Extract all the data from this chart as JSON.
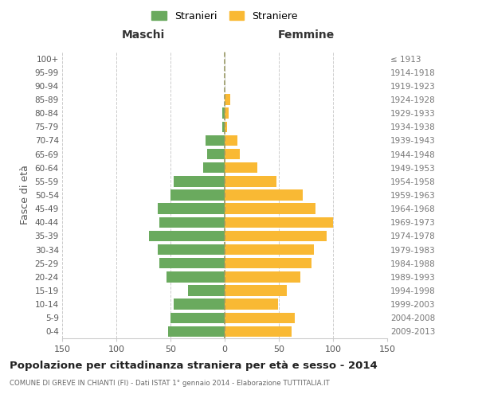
{
  "age_groups": [
    "0-4",
    "5-9",
    "10-14",
    "15-19",
    "20-24",
    "25-29",
    "30-34",
    "35-39",
    "40-44",
    "45-49",
    "50-54",
    "55-59",
    "60-64",
    "65-69",
    "70-74",
    "75-79",
    "80-84",
    "85-89",
    "90-94",
    "95-99",
    "100+"
  ],
  "birth_years": [
    "2009-2013",
    "2004-2008",
    "1999-2003",
    "1994-1998",
    "1989-1993",
    "1984-1988",
    "1979-1983",
    "1974-1978",
    "1969-1973",
    "1964-1968",
    "1959-1963",
    "1954-1958",
    "1949-1953",
    "1944-1948",
    "1939-1943",
    "1934-1938",
    "1929-1933",
    "1924-1928",
    "1919-1923",
    "1914-1918",
    "≤ 1913"
  ],
  "maschi": [
    52,
    50,
    47,
    34,
    54,
    60,
    62,
    70,
    60,
    62,
    50,
    47,
    20,
    16,
    18,
    2,
    2,
    0,
    0,
    0,
    0
  ],
  "femmine": [
    62,
    65,
    49,
    57,
    70,
    80,
    82,
    94,
    100,
    84,
    72,
    48,
    30,
    14,
    12,
    2,
    4,
    5,
    0,
    0,
    0
  ],
  "maschi_color": "#6aaa5e",
  "femmine_color": "#f9b934",
  "grid_color": "#cccccc",
  "title": "Popolazione per cittadinanza straniera per età e sesso - 2014",
  "subtitle": "COMUNE DI GREVE IN CHIANTI (FI) - Dati ISTAT 1° gennaio 2014 - Elaborazione TUTTITALIA.IT",
  "xlabel_left": "Maschi",
  "xlabel_right": "Femmine",
  "ylabel_left": "Fasce di età",
  "xlim": 150,
  "legend_labels": [
    "Stranieri",
    "Straniere"
  ],
  "center_line_color": "#999966",
  "xticks": [
    -150,
    -100,
    -50,
    0,
    50,
    100,
    150
  ],
  "xtick_labels": [
    "150",
    "100",
    "50",
    "0",
    "50",
    "100",
    "150"
  ]
}
